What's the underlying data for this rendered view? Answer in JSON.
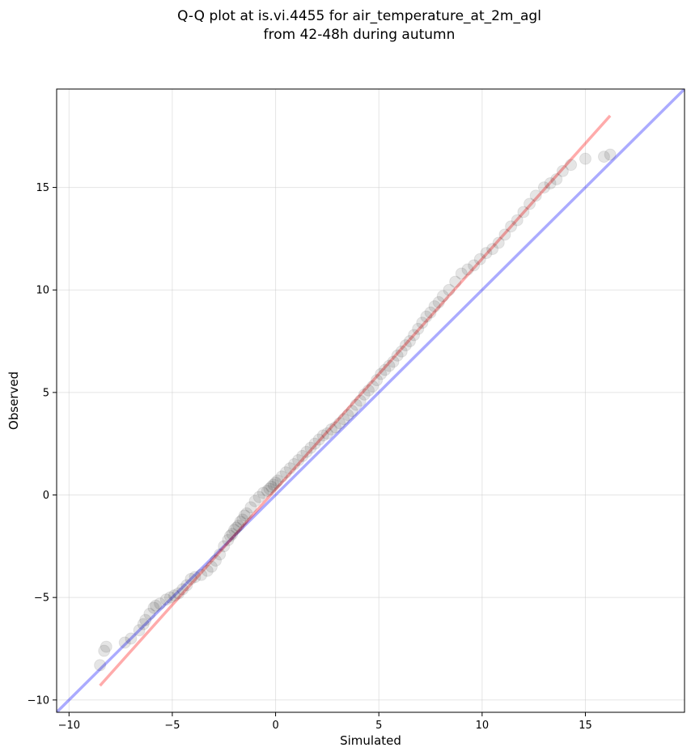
{
  "chart_data": {
    "type": "scatter",
    "title": "Q-Q plot at is.vi.4455 for air_temperature_at_2m_agl",
    "subtitle": "from 42-48h during autumn",
    "xlabel": "Simulated",
    "ylabel": "Observed",
    "xlim": [
      -10.6,
      19.8
    ],
    "ylim": [
      -10.6,
      19.8
    ],
    "xticks": [
      -10,
      -5,
      0,
      5,
      10,
      15
    ],
    "yticks": [
      -10,
      -5,
      0,
      5,
      10,
      15
    ],
    "xtick_labels": [
      "−10",
      "−5",
      "0",
      "5",
      "10",
      "15"
    ],
    "ytick_labels": [
      "−10",
      "−5",
      "0",
      "5",
      "10",
      "15"
    ],
    "grid": true,
    "colors": {
      "points": "#000000",
      "fit_line": "#ff0000",
      "identity_line": "#0000ff",
      "grid": "#cccccc"
    },
    "identity_line": {
      "x": [
        -10.6,
        19.8
      ],
      "y": [
        -10.6,
        19.8
      ]
    },
    "fit_line": {
      "x": [
        -8.5,
        16.2
      ],
      "y": [
        -9.3,
        18.5
      ]
    },
    "points": {
      "x": [
        -8.5,
        -8.3,
        -8.2,
        -7.3,
        -7.0,
        -6.6,
        -6.4,
        -6.3,
        -6.1,
        -5.9,
        -5.8,
        -5.6,
        -5.3,
        -5.1,
        -4.9,
        -4.7,
        -4.5,
        -4.3,
        -4.1,
        -3.9,
        -3.6,
        -3.3,
        -3.1,
        -2.9,
        -2.7,
        -2.5,
        -2.3,
        -2.2,
        -2.1,
        -2.0,
        -1.9,
        -1.8,
        -1.7,
        -1.6,
        -1.5,
        -1.4,
        -1.2,
        -1.0,
        -0.8,
        -0.6,
        -0.4,
        -0.3,
        -0.2,
        -0.1,
        0.0,
        0.1,
        0.3,
        0.5,
        0.7,
        0.9,
        1.1,
        1.3,
        1.5,
        1.7,
        1.9,
        2.1,
        2.3,
        2.5,
        2.7,
        2.9,
        3.1,
        3.3,
        3.5,
        3.7,
        3.9,
        4.1,
        4.3,
        4.5,
        4.7,
        4.9,
        5.1,
        5.3,
        5.5,
        5.7,
        5.9,
        6.1,
        6.3,
        6.5,
        6.7,
        6.9,
        7.1,
        7.3,
        7.5,
        7.7,
        7.9,
        8.1,
        8.4,
        8.7,
        9.0,
        9.3,
        9.6,
        9.9,
        10.2,
        10.5,
        10.8,
        11.1,
        11.4,
        11.7,
        12.0,
        12.3,
        12.6,
        13.0,
        13.3,
        13.6,
        13.9,
        14.3,
        15.0,
        15.9,
        16.2
      ],
      "y": [
        -8.3,
        -7.6,
        -7.4,
        -7.2,
        -7.0,
        -6.6,
        -6.3,
        -6.1,
        -5.8,
        -5.5,
        -5.4,
        -5.3,
        -5.1,
        -5.0,
        -4.9,
        -4.8,
        -4.6,
        -4.4,
        -4.1,
        -4.0,
        -3.9,
        -3.7,
        -3.5,
        -3.2,
        -2.9,
        -2.5,
        -2.2,
        -2.0,
        -1.9,
        -1.7,
        -1.6,
        -1.5,
        -1.3,
        -1.2,
        -1.0,
        -0.9,
        -0.6,
        -0.3,
        -0.1,
        0.1,
        0.2,
        0.3,
        0.4,
        0.5,
        0.6,
        0.7,
        0.9,
        1.1,
        1.3,
        1.5,
        1.7,
        1.9,
        2.1,
        2.3,
        2.5,
        2.7,
        2.9,
        3.0,
        3.2,
        3.3,
        3.5,
        3.7,
        3.9,
        4.1,
        4.4,
        4.6,
        4.9,
        5.1,
        5.3,
        5.6,
        5.9,
        6.1,
        6.3,
        6.5,
        6.8,
        7.0,
        7.3,
        7.5,
        7.8,
        8.1,
        8.4,
        8.7,
        8.9,
        9.2,
        9.4,
        9.7,
        10.0,
        10.4,
        10.8,
        11.0,
        11.2,
        11.5,
        11.8,
        12.0,
        12.3,
        12.7,
        13.1,
        13.4,
        13.8,
        14.2,
        14.6,
        15.0,
        15.2,
        15.4,
        15.8,
        16.1,
        16.4,
        16.5,
        16.6
      ]
    }
  }
}
